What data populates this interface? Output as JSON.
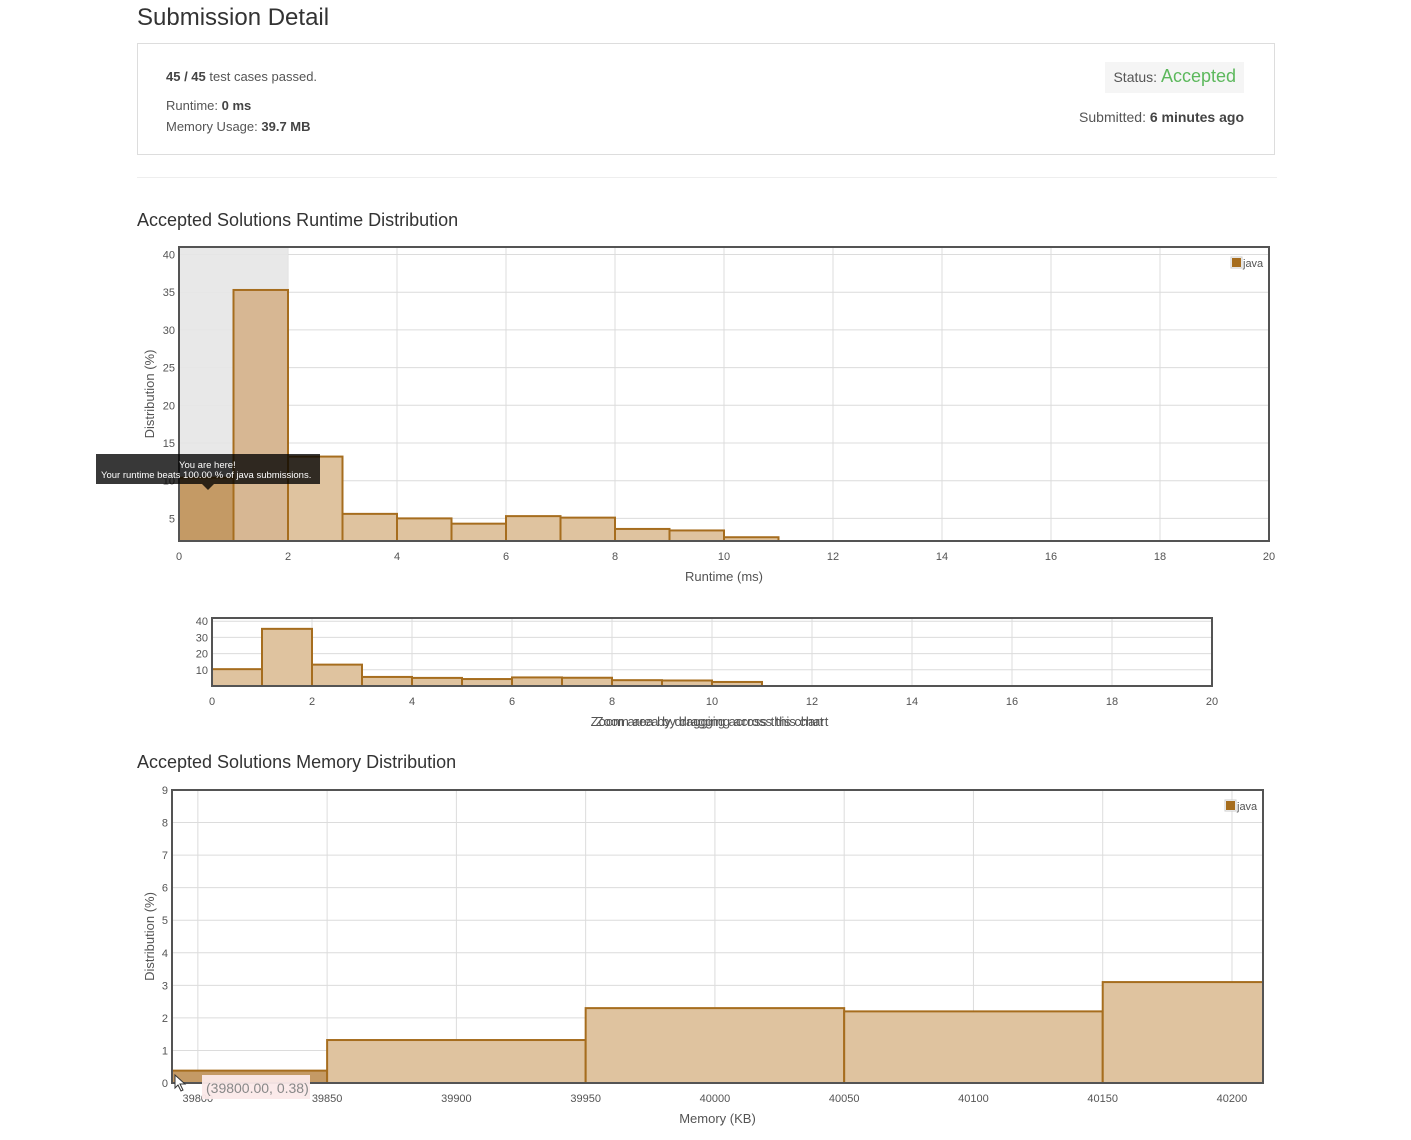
{
  "header": {
    "title": "Submission Detail"
  },
  "summary": {
    "passed": "45 / 45",
    "passed_suffix": " test cases passed.",
    "runtime_label": "Runtime: ",
    "runtime_value": "0 ms",
    "memory_label": "Memory Usage: ",
    "memory_value": "39.7 MB",
    "status_label": "Status: ",
    "status_value": "Accepted",
    "submitted_label": "Submitted: ",
    "submitted_value": "6 minutes ago"
  },
  "colors": {
    "bar_fill": "#dfc39f",
    "bar_stroke": "#a66d1e",
    "highlight_fill": "#c49a65",
    "accepted_green": "#5cb85c",
    "legend_swatch": "#a66d1e"
  },
  "runtime_section": {
    "title": "Accepted Solutions Runtime Distribution"
  },
  "memory_section": {
    "title": "Accepted Solutions Memory Distribution"
  },
  "runtime_tooltip": {
    "line1": "You are here!",
    "line2": "Your runtime beats 100.00 % of java submissions."
  },
  "memory_tooltip": {
    "text": "(39800.00, 0.38)"
  },
  "overview_caption": "Zoom area by dragging across this chart",
  "chart_data": [
    {
      "type": "bar",
      "title": "Accepted Solutions Runtime Distribution",
      "xlabel": "Runtime (ms)",
      "ylabel": "Distribution (%)",
      "xlim": [
        0,
        20
      ],
      "ylim": [
        2,
        41
      ],
      "x_ticks": [
        0,
        2,
        4,
        6,
        8,
        10,
        12,
        14,
        16,
        18,
        20
      ],
      "y_ticks": [
        5,
        10,
        15,
        20,
        25,
        30,
        35,
        40
      ],
      "legend": "top-right",
      "grid": true,
      "series": [
        {
          "name": "java",
          "bins": [
            [
              0,
              1
            ],
            [
              1,
              2
            ],
            [
              2,
              3
            ],
            [
              3,
              4
            ],
            [
              4,
              5
            ],
            [
              5,
              6
            ],
            [
              6,
              7
            ],
            [
              7,
              8
            ],
            [
              8,
              9
            ],
            [
              9,
              10
            ],
            [
              10,
              11
            ]
          ],
          "values": [
            10.4,
            35.3,
            13.2,
            5.6,
            5.0,
            4.3,
            5.3,
            5.1,
            3.6,
            3.4,
            2.5
          ],
          "highlight_index": 0
        }
      ]
    },
    {
      "type": "bar",
      "title": "",
      "xlabel": "Zoom area by dragging across this chart",
      "ylabel": "",
      "xlim": [
        0,
        20
      ],
      "ylim": [
        0,
        42
      ],
      "x_ticks": [
        0,
        2,
        4,
        6,
        8,
        10,
        12,
        14,
        16,
        18,
        20
      ],
      "y_ticks": [
        10,
        20,
        30,
        40
      ],
      "grid": true,
      "series": [
        {
          "name": "java",
          "bins": [
            [
              0,
              1
            ],
            [
              1,
              2
            ],
            [
              2,
              3
            ],
            [
              3,
              4
            ],
            [
              4,
              5
            ],
            [
              5,
              6
            ],
            [
              6,
              7
            ],
            [
              7,
              8
            ],
            [
              8,
              9
            ],
            [
              9,
              10
            ],
            [
              10,
              11
            ]
          ],
          "values": [
            10.4,
            35.3,
            13.2,
            5.6,
            5.0,
            4.3,
            5.3,
            5.1,
            3.6,
            3.4,
            2.5
          ]
        }
      ]
    },
    {
      "type": "bar",
      "title": "Accepted Solutions Memory Distribution",
      "xlabel": "Memory (KB)",
      "ylabel": "Distribution (%)",
      "xlim": [
        39790,
        40212
      ],
      "ylim": [
        0,
        9
      ],
      "x_ticks": [
        39800,
        39850,
        39900,
        39950,
        40000,
        40050,
        40100,
        40150,
        40200
      ],
      "y_ticks": [
        0,
        1,
        2,
        3,
        4,
        5,
        6,
        7,
        8,
        9
      ],
      "legend": "top-right",
      "grid": true,
      "series": [
        {
          "name": "java",
          "bins": [
            [
              39790,
              39850
            ],
            [
              39850,
              39950
            ],
            [
              39950,
              40050
            ],
            [
              40050,
              40150
            ],
            [
              40150,
              40212
            ]
          ],
          "values": [
            0.38,
            1.32,
            2.3,
            2.2,
            3.1
          ],
          "highlight_index": 0
        }
      ]
    }
  ]
}
